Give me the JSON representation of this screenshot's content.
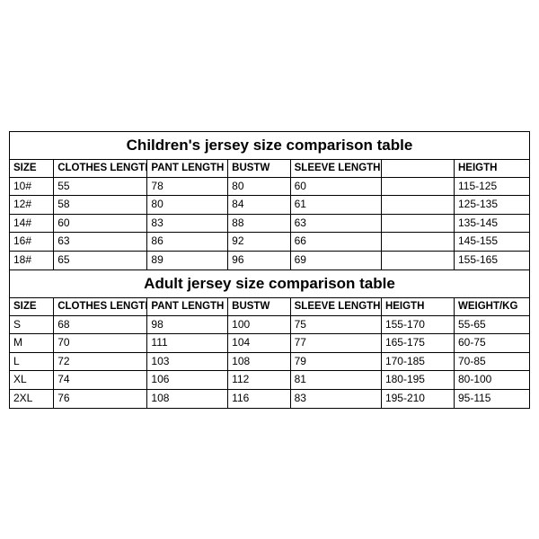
{
  "children": {
    "title": "Children's jersey size comparison table",
    "columns": [
      "SIZE",
      "CLOTHES LENGTH",
      "PANT LENGTH",
      "BUSTW",
      "SLEEVE LENGTH",
      "",
      "HEIGTH"
    ],
    "rows": [
      [
        "10#",
        "55",
        "78",
        "80",
        "60",
        "",
        "115-125"
      ],
      [
        "12#",
        "58",
        "80",
        "84",
        "61",
        "",
        "125-135"
      ],
      [
        "14#",
        "60",
        "83",
        "88",
        "63",
        "",
        "135-145"
      ],
      [
        "16#",
        "63",
        "86",
        "92",
        "66",
        "",
        "145-155"
      ],
      [
        "18#",
        "65",
        "89",
        "96",
        "69",
        "",
        "155-165"
      ]
    ]
  },
  "adult": {
    "title": "Adult jersey size comparison table",
    "columns": [
      "SIZE",
      "CLOTHES LENGTH",
      "PANT LENGTH",
      "BUSTW",
      "SLEEVE LENGTH",
      "HEIGTH",
      "WEIGHT/KG"
    ],
    "rows": [
      [
        "S",
        "68",
        "98",
        "100",
        "75",
        "155-170",
        "55-65"
      ],
      [
        "M",
        "70",
        "111",
        "104",
        "77",
        "165-175",
        "60-75"
      ],
      [
        "L",
        "72",
        "103",
        "108",
        "79",
        "170-185",
        "70-85"
      ],
      [
        "XL",
        "74",
        "106",
        "112",
        "81",
        "180-195",
        "80-100"
      ],
      [
        "2XL",
        "76",
        "108",
        "116",
        "83",
        "195-210",
        "95-115"
      ]
    ]
  },
  "style": {
    "border_color": "#000000",
    "background": "#ffffff",
    "title_fontsize": 17,
    "header_fontsize": 11.5,
    "cell_fontsize": 12,
    "col_widths_pct": [
      8.5,
      18,
      15.5,
      12,
      17.5,
      14,
      14.5
    ]
  }
}
